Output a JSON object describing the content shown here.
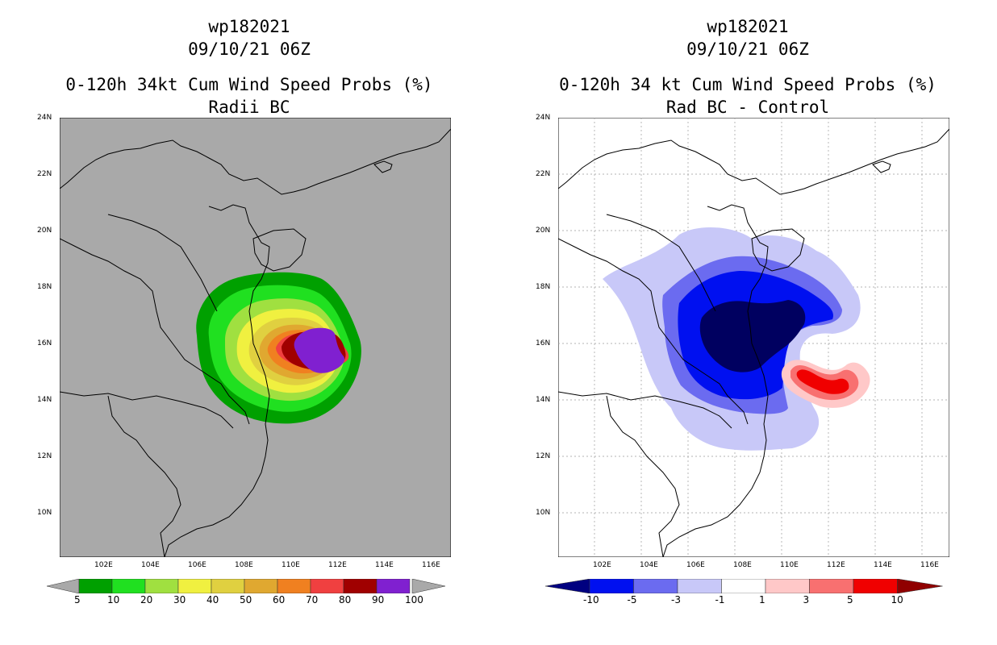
{
  "left": {
    "storm": "wp182021",
    "datetime": "09/10/21 06Z",
    "title": "0-120h 34kt Cum Wind Speed Probs (%)",
    "subtitle": "Radii BC",
    "background": "#a9a9a9",
    "colorbar": {
      "labels": [
        "5",
        "10",
        "20",
        "30",
        "40",
        "50",
        "60",
        "70",
        "80",
        "90",
        "100"
      ],
      "colors": [
        "#00a000",
        "#20e020",
        "#a0e040",
        "#f0f040",
        "#e0d040",
        "#e0a830",
        "#f08020",
        "#f04040",
        "#a00000",
        "#8020d0"
      ]
    }
  },
  "right": {
    "storm": "wp182021",
    "datetime": "09/10/21 06Z",
    "title": "0-120h 34 kt Cum Wind Speed Probs (%)",
    "subtitle": "Rad BC - Control",
    "background": "#ffffff",
    "colorbar": {
      "labels": [
        "-10",
        "-5",
        "-3",
        "-1",
        "1",
        "3",
        "5",
        "10"
      ],
      "colors": [
        "#000080",
        "#0010f0",
        "#6b6bf0",
        "#c8c8f8",
        "#ffffff",
        "#ffc8c8",
        "#f87070",
        "#f00000",
        "#900000"
      ]
    }
  },
  "axes": {
    "lat_labels": [
      "24N",
      "22N",
      "20N",
      "18N",
      "16N",
      "14N",
      "12N",
      "10N"
    ],
    "lon_labels": [
      "102E",
      "104E",
      "106E",
      "108E",
      "110E",
      "112E",
      "114E",
      "116E"
    ]
  }
}
